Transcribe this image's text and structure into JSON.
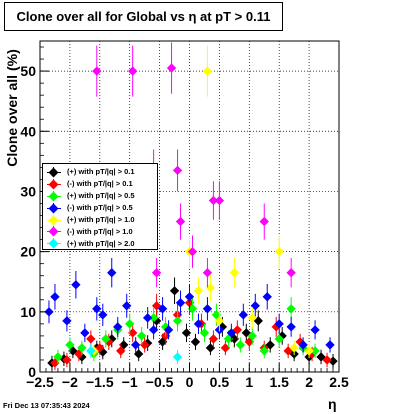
{
  "title": "Clone  over all for Global vs    η  at pT > 0.11",
  "footer_timestamp": "Fri Dec 13 07:35:43 2024",
  "chart_data": {
    "type": "scatter",
    "title": "Clone  over all for Global vs    η  at pT > 0.11",
    "xlabel": "η",
    "ylabel": "Clone  over all (%)",
    "xlim": [
      -2.5,
      2.5
    ],
    "ylim": [
      0,
      55
    ],
    "xticks": [
      "−2.5",
      "−2",
      "−1.5",
      "−1",
      "−0.5",
      "0",
      "0.5",
      "1",
      "1.5",
      "2",
      "2.5"
    ],
    "yticks": [
      "0",
      "10",
      "20",
      "30",
      "40",
      "50"
    ],
    "grid": true,
    "legend_position": "middle-left",
    "series": [
      {
        "name": "(+) with pT/|q| > 0.1",
        "color": "#000000",
        "points": [
          [
            -2.3,
            1.5
          ],
          [
            -2.1,
            2.2
          ],
          [
            -1.95,
            3.5
          ],
          [
            -1.8,
            2.5
          ],
          [
            -1.55,
            4.0
          ],
          [
            -1.45,
            3.3
          ],
          [
            -1.3,
            5.5
          ],
          [
            -1.1,
            4.5
          ],
          [
            -0.85,
            3.0
          ],
          [
            -0.7,
            4.8
          ],
          [
            -0.55,
            8.5
          ],
          [
            -0.45,
            5.0
          ],
          [
            -0.25,
            13.5
          ],
          [
            -0.05,
            6.5
          ],
          [
            0.1,
            5.0
          ],
          [
            0.35,
            4.0
          ],
          [
            0.55,
            7.5
          ],
          [
            0.75,
            5.5
          ],
          [
            0.95,
            6.5
          ],
          [
            1.15,
            8.5
          ],
          [
            1.35,
            4.5
          ],
          [
            1.55,
            6.0
          ],
          [
            1.75,
            3.0
          ],
          [
            2.0,
            2.5
          ],
          [
            2.2,
            2.5
          ],
          [
            2.4,
            1.8
          ]
        ]
      },
      {
        "name": "(-) with pT/|q| > 0.1",
        "color": "#ff0000",
        "points": [
          [
            -2.25,
            1.5
          ],
          [
            -2.05,
            2.0
          ],
          [
            -1.85,
            3.0
          ],
          [
            -1.65,
            5.5
          ],
          [
            -1.5,
            4.0
          ],
          [
            -1.35,
            5.0
          ],
          [
            -1.15,
            3.5
          ],
          [
            -0.95,
            6.5
          ],
          [
            -0.75,
            4.5
          ],
          [
            -0.55,
            11.0
          ],
          [
            -0.4,
            6.0
          ],
          [
            -0.2,
            9.5
          ],
          [
            0.0,
            11.5
          ],
          [
            0.2,
            8.0
          ],
          [
            0.4,
            5.5
          ],
          [
            0.6,
            4.0
          ],
          [
            0.8,
            7.0
          ],
          [
            1.0,
            5.0
          ],
          [
            1.25,
            4.0
          ],
          [
            1.45,
            7.5
          ],
          [
            1.65,
            3.5
          ],
          [
            1.85,
            5.0
          ],
          [
            2.05,
            3.0
          ],
          [
            2.3,
            2.0
          ]
        ]
      },
      {
        "name": "(+) with pT/|q| > 0.5",
        "color": "#00ff00",
        "points": [
          [
            -2.2,
            2.5
          ],
          [
            -2.0,
            4.5
          ],
          [
            -1.8,
            4.0
          ],
          [
            -1.6,
            3.0
          ],
          [
            -1.4,
            5.5
          ],
          [
            -1.2,
            7.0
          ],
          [
            -1.0,
            8.0
          ],
          [
            -0.8,
            6.0
          ],
          [
            -0.6,
            9.0
          ],
          [
            -0.4,
            7.5
          ],
          [
            -0.2,
            8.5
          ],
          [
            0.05,
            10.5
          ],
          [
            0.25,
            6.5
          ],
          [
            0.45,
            9.5
          ],
          [
            0.65,
            5.5
          ],
          [
            0.85,
            4.5
          ],
          [
            1.05,
            6.0
          ],
          [
            1.25,
            3.5
          ],
          [
            1.5,
            5.5
          ],
          [
            1.7,
            10.5
          ],
          [
            1.9,
            4.0
          ],
          [
            2.1,
            3.5
          ]
        ]
      },
      {
        "name": "(-) with pT/|q| > 0.5",
        "color": "#0000ff",
        "points": [
          [
            -2.35,
            10.0
          ],
          [
            -2.25,
            12.5
          ],
          [
            -2.05,
            8.5
          ],
          [
            -1.9,
            14.5
          ],
          [
            -1.75,
            6.5
          ],
          [
            -1.55,
            10.5
          ],
          [
            -1.45,
            9.5
          ],
          [
            -1.3,
            16.5
          ],
          [
            -1.2,
            7.5
          ],
          [
            -1.05,
            11.0
          ],
          [
            -0.9,
            4.5
          ],
          [
            -0.7,
            9.0
          ],
          [
            -0.6,
            7.0
          ],
          [
            -0.45,
            10.5
          ],
          [
            -0.35,
            7.0
          ],
          [
            -0.15,
            11.5
          ],
          [
            0.0,
            12.5
          ],
          [
            0.15,
            8.0
          ],
          [
            0.3,
            10.5
          ],
          [
            0.5,
            7.0
          ],
          [
            0.7,
            6.5
          ],
          [
            0.9,
            9.5
          ],
          [
            1.1,
            11.0
          ],
          [
            1.3,
            12.5
          ],
          [
            1.5,
            8.0
          ],
          [
            1.7,
            7.5
          ],
          [
            1.9,
            4.5
          ],
          [
            2.1,
            7.0
          ],
          [
            2.35,
            4.5
          ]
        ]
      },
      {
        "name": "(+) with pT/|q| > 1.0",
        "color": "#ffff00",
        "points": [
          [
            -1.6,
            3.5
          ],
          [
            0.0,
            20.0
          ],
          [
            0.15,
            13.5
          ],
          [
            0.3,
            50.0
          ],
          [
            0.35,
            14.0
          ],
          [
            0.5,
            8.5
          ],
          [
            0.75,
            16.5
          ],
          [
            1.05,
            9.0
          ],
          [
            1.5,
            20.0
          ],
          [
            1.75,
            4.0
          ],
          [
            2.0,
            3.5
          ]
        ]
      },
      {
        "name": "(-) with pT/|q| > 1.0",
        "color": "#ff00ff",
        "points": [
          [
            -1.55,
            50.0
          ],
          [
            -0.95,
            50.0
          ],
          [
            -0.6,
            33.5
          ],
          [
            -0.55,
            16.5
          ],
          [
            -0.3,
            50.5
          ],
          [
            -0.2,
            33.5
          ],
          [
            -0.15,
            25.0
          ],
          [
            0.05,
            20.0
          ],
          [
            0.3,
            16.5
          ],
          [
            0.4,
            28.5
          ],
          [
            0.5,
            28.5
          ],
          [
            1.25,
            25.0
          ],
          [
            1.7,
            16.5
          ]
        ]
      },
      {
        "name": "(+) with pT/|q| > 2.0",
        "color": "#00ffff",
        "points": [
          [
            -1.65,
            3.5
          ],
          [
            -0.2,
            2.5
          ]
        ]
      }
    ]
  }
}
